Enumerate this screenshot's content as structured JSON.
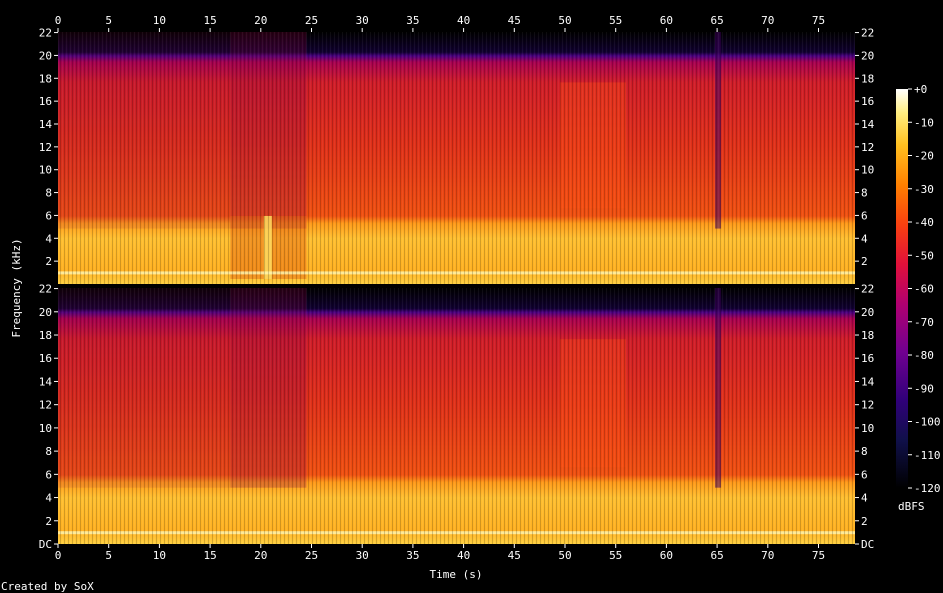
{
  "chart_data": {
    "type": "heatmap",
    "title": "",
    "xlabel": "Time (s)",
    "ylabel": "Frequency (kHz)",
    "x_ticks": [
      "0",
      "5",
      "10",
      "15",
      "20",
      "25",
      "30",
      "35",
      "40",
      "45",
      "50",
      "55",
      "60",
      "65",
      "70",
      "75"
    ],
    "y_ticks_top": [
      "2",
      "4",
      "6",
      "8",
      "10",
      "12",
      "14",
      "16",
      "18",
      "20",
      "22"
    ],
    "y_ticks_bottom": [
      "DC",
      "2",
      "4",
      "6",
      "8",
      "10",
      "12",
      "14",
      "16",
      "18",
      "20",
      "22"
    ],
    "xlim": [
      0,
      78.6
    ],
    "ylim": [
      0,
      22.05
    ],
    "channels": 2,
    "colorbar": {
      "label": "dBFS",
      "ticks": [
        "+0",
        "-10",
        "-20",
        "-30",
        "-40",
        "-50",
        "-60",
        "-70",
        "-80",
        "-90",
        "-100",
        "-110",
        "-120"
      ],
      "range": [
        -120,
        0
      ]
    },
    "segments_s": [
      {
        "t": [
          0,
          17
        ],
        "level": "high-mid"
      },
      {
        "t": [
          17,
          24.5
        ],
        "level": "mid"
      },
      {
        "t": [
          24.5,
          49.5
        ],
        "level": "high"
      },
      {
        "t": [
          49.5,
          56
        ],
        "level": "very-high"
      },
      {
        "t": [
          56,
          65
        ],
        "level": "high"
      },
      {
        "t": [
          65,
          78.6
        ],
        "level": "high"
      }
    ],
    "credit": "Created by SoX"
  },
  "colors": {
    "background": "#000000",
    "palette": [
      "#000000",
      "#20007a",
      "#5b0090",
      "#9a0080",
      "#d0004a",
      "#f0201a",
      "#ff6000",
      "#ffa000",
      "#ffe030",
      "#ffffd0",
      "#ffffff"
    ]
  }
}
